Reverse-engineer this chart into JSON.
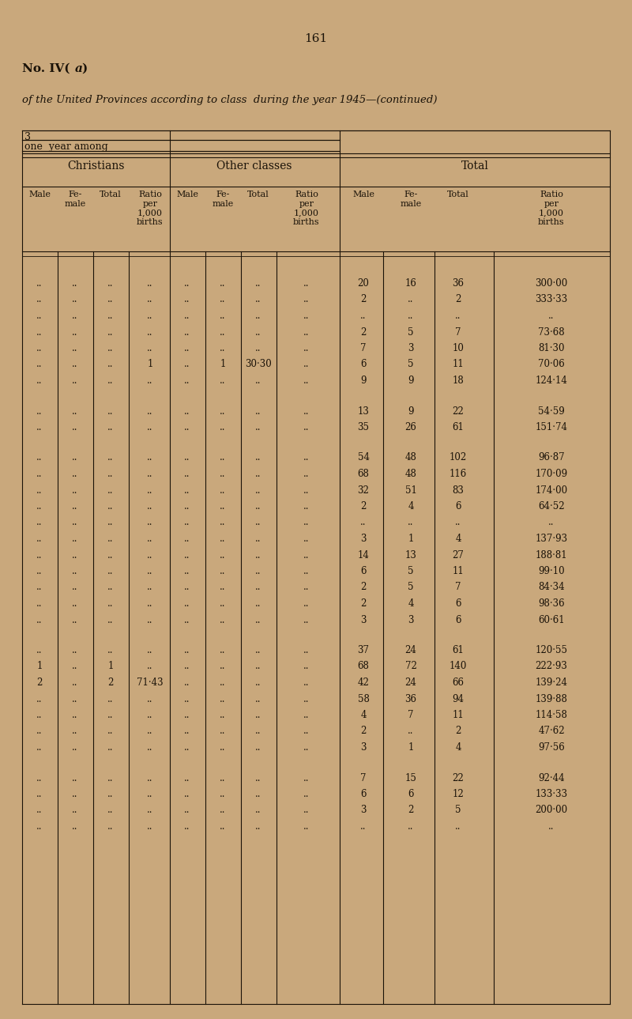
{
  "page_number": "161",
  "subtitle": "of the United Provinces according to class  during the year 1945—(continued)",
  "bg_color": "#c9a87c",
  "text_color": "#1a1208",
  "section_headers": [
    "Christians",
    "Other classes",
    "Total"
  ],
  "col_header_texts": [
    "Male",
    "Fe-\nmale",
    "Total",
    "Ratio\nper\n1,000\nbirths"
  ],
  "rows": [
    [
      "..",
      "..",
      "..",
      "..",
      "..",
      "..",
      "..",
      "..",
      "20",
      "16",
      "36",
      "300·00"
    ],
    [
      "..",
      "..",
      "..",
      "..",
      "..",
      "..",
      "..",
      "..",
      "2",
      "..",
      "2",
      "333·33"
    ],
    [
      "..",
      "..",
      "..",
      "..",
      "..",
      "..",
      "..",
      "..",
      "..",
      "..",
      "..",
      ".."
    ],
    [
      "..",
      "..",
      "..",
      "..",
      "..",
      "..",
      "..",
      "..",
      "2",
      "5",
      "7",
      "73·68"
    ],
    [
      "..",
      "..",
      "..",
      "..",
      "..",
      "..",
      "..",
      "..",
      "7",
      "3",
      "10",
      "81·30"
    ],
    [
      "..",
      "..",
      "..",
      "1",
      "..",
      "1",
      "30·30",
      "..",
      "6",
      "5",
      "11",
      "70·06"
    ],
    [
      "..",
      "..",
      "..",
      "..",
      "..",
      "..",
      "..",
      "..",
      "9",
      "9",
      "18",
      "124·14"
    ],
    [
      "",
      "",
      "",
      "",
      "",
      "",
      "",
      "",
      "",
      "",
      "",
      ""
    ],
    [
      "..",
      "..",
      "..",
      "..",
      "..",
      "..",
      "..",
      "..",
      "13",
      "9",
      "22",
      "54·59"
    ],
    [
      "..",
      "..",
      "..",
      "..",
      "..",
      "..",
      "..",
      "..",
      "35",
      "26",
      "61",
      "151·74"
    ],
    [
      "",
      "",
      "",
      "",
      "",
      "",
      "",
      "",
      "",
      "",
      "",
      ""
    ],
    [
      "..",
      "..",
      "..",
      "..",
      "..",
      "..",
      "..",
      "..",
      "54",
      "48",
      "102",
      "96·87"
    ],
    [
      "..",
      "..",
      "..",
      "..",
      "..",
      "..",
      "..",
      "..",
      "68",
      "48",
      "116",
      "170·09"
    ],
    [
      "..",
      "..",
      "..",
      "..",
      "..",
      "..",
      "..",
      "..",
      "32",
      "51",
      "83",
      "174·00"
    ],
    [
      "..",
      "..",
      "..",
      "..",
      "..",
      "..",
      "..",
      "..",
      "2",
      "4",
      "6",
      "64·52"
    ],
    [
      "..",
      "..",
      "..",
      "..",
      "..",
      "..",
      "..",
      "..",
      "..",
      "..",
      "..",
      ".."
    ],
    [
      "..",
      "..",
      "..",
      "..",
      "..",
      "..",
      "..",
      "..",
      "3",
      "1",
      "4",
      "137·93"
    ],
    [
      "..",
      "..",
      "..",
      "..",
      "..",
      "..",
      "..",
      "..",
      "14",
      "13",
      "27",
      "188·81"
    ],
    [
      "..",
      "..",
      "..",
      "..",
      "..",
      "..",
      "..",
      "..",
      "6",
      "5",
      "11",
      "99·10"
    ],
    [
      "..",
      "..",
      "..",
      "..",
      "..",
      "..",
      "..",
      "..",
      "2",
      "5",
      "7",
      "84·34"
    ],
    [
      "..",
      "..",
      "..",
      "..",
      "..",
      "..",
      "..",
      "..",
      "2",
      "4",
      "6",
      "98·36"
    ],
    [
      "..",
      "..",
      "..",
      "..",
      "..",
      "..",
      "..",
      "..",
      "3",
      "3",
      "6",
      "60·61"
    ],
    [
      "",
      "",
      "",
      "",
      "",
      "",
      "",
      "",
      "",
      "",
      "",
      ""
    ],
    [
      "..",
      "..",
      "..",
      "..",
      "..",
      "..",
      "..",
      "..",
      "37",
      "24",
      "61",
      "120·55"
    ],
    [
      "1",
      "..",
      "1",
      "..",
      "..",
      "..",
      "..",
      "..",
      "68",
      "72",
      "140",
      "222·93"
    ],
    [
      "2",
      "..",
      "2",
      "71·43",
      "..",
      "..",
      "..",
      "..",
      "42",
      "24",
      "66",
      "139·24"
    ],
    [
      "..",
      "..",
      "..",
      "..",
      "..",
      "..",
      "..",
      "..",
      "58",
      "36",
      "94",
      "139·88"
    ],
    [
      "..",
      "..",
      "..",
      "..",
      "..",
      "..",
      "..",
      "..",
      "4",
      "7",
      "11",
      "114·58"
    ],
    [
      "..",
      "..",
      "..",
      "..",
      "..",
      "..",
      "..",
      "..",
      "2",
      "..",
      "2",
      "47·62"
    ],
    [
      "..",
      "..",
      "..",
      "..",
      "..",
      "..",
      "..",
      "..",
      "3",
      "1",
      "4",
      "97·56"
    ],
    [
      "",
      "",
      "",
      "",
      "",
      "",
      "",
      "",
      "",
      "",
      "",
      ""
    ],
    [
      "..",
      "..",
      "..",
      "..",
      "..",
      "..",
      "..",
      "..",
      "7",
      "15",
      "22",
      "92·44"
    ],
    [
      "..",
      "..",
      "..",
      "..",
      "..",
      "..",
      "..",
      "..",
      "6",
      "6",
      "12",
      "133·33"
    ],
    [
      "..",
      "..",
      "..",
      "..",
      "..",
      "..",
      "..",
      "..",
      "3",
      "2",
      "5",
      "200·00"
    ],
    [
      "..",
      "..",
      "..",
      "..",
      "..",
      "..",
      "..",
      "..",
      "..",
      "..",
      "..",
      ".."
    ]
  ]
}
